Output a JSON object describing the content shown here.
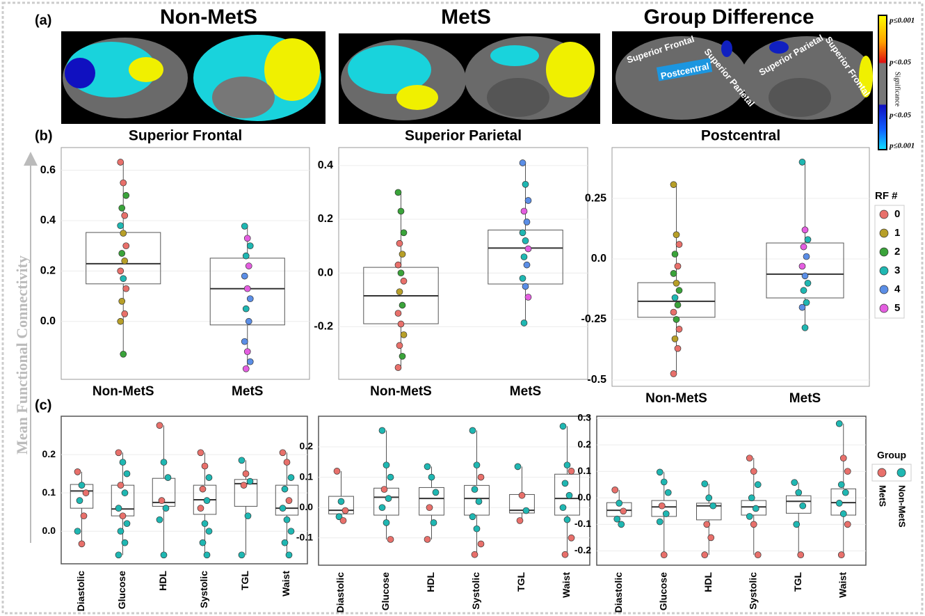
{
  "panel_labels": [
    "(a)",
    "(b)",
    "(c)"
  ],
  "y_axis_label": "Mean Functional Connectivity",
  "brain_panels": [
    {
      "title": "Non-MetS"
    },
    {
      "title": "MetS"
    },
    {
      "title": "Group Difference",
      "labels": [
        "Superior Frontal",
        "Postcentral",
        "Superior Parietal",
        "Superior Parietal",
        "Superior Frontal"
      ]
    }
  ],
  "colorbar": {
    "title": "Significance",
    "labels": [
      "p≤0.001",
      "p<0.05",
      "p<0.05",
      "p≤0.001"
    ]
  },
  "chart_data": [
    {
      "type": "box",
      "title": "Superior Frontal",
      "categories": [
        "Non-MetS",
        "MetS"
      ],
      "ylim": [
        -0.23,
        0.69
      ],
      "yticks": [
        {
          "value": 0,
          "label": "0.0"
        },
        0.2,
        0.4,
        0.6
      ],
      "grid": true,
      "boxes": [
        {
          "whisker_low": -0.13,
          "q1": 0.149,
          "median": 0.229,
          "q3": 0.353,
          "whisker_high": 0.632,
          "points": [
            0.632,
            0.55,
            0.5,
            0.45,
            0.42,
            0.38,
            0.35,
            0.3,
            0.27,
            0.24,
            0.2,
            0.17,
            0.13,
            0.08,
            0.03,
            0.0,
            -0.13
          ],
          "groups": [
            0,
            0,
            2,
            2,
            0,
            3,
            1,
            0,
            2,
            1,
            0,
            3,
            0,
            1,
            0,
            1,
            2
          ]
        },
        {
          "whisker_low": -0.188,
          "q1": -0.014,
          "median": 0.13,
          "q3": 0.251,
          "whisker_high": 0.378,
          "points": [
            0.378,
            0.33,
            0.3,
            0.26,
            0.22,
            0.18,
            0.13,
            0.09,
            0.05,
            0.0,
            -0.08,
            -0.12,
            -0.16,
            -0.188
          ],
          "groups": [
            3,
            5,
            3,
            3,
            5,
            4,
            5,
            4,
            3,
            4,
            4,
            5,
            4,
            5
          ]
        }
      ]
    },
    {
      "type": "box",
      "title": "Superior Parietal",
      "categories": [
        "Non-MetS",
        "MetS"
      ],
      "ylim": [
        -0.396,
        0.467
      ],
      "yticks": [
        -0.2,
        {
          "value": 0,
          "label": "0.0"
        },
        0.2,
        0.4
      ],
      "grid": true,
      "boxes": [
        {
          "whisker_low": -0.352,
          "q1": -0.189,
          "median": -0.085,
          "q3": 0.021,
          "whisker_high": 0.3,
          "points": [
            0.3,
            0.23,
            0.15,
            0.11,
            0.07,
            0.03,
            0.0,
            -0.03,
            -0.07,
            -0.12,
            -0.15,
            -0.19,
            -0.23,
            -0.27,
            -0.31,
            -0.352
          ],
          "groups": [
            2,
            2,
            2,
            0,
            1,
            0,
            2,
            0,
            1,
            2,
            0,
            0,
            1,
            0,
            2,
            0
          ]
        },
        {
          "whisker_low": -0.186,
          "q1": -0.041,
          "median": 0.093,
          "q3": 0.16,
          "whisker_high": 0.41,
          "points": [
            0.41,
            0.33,
            0.27,
            0.23,
            0.19,
            0.15,
            0.12,
            0.09,
            0.06,
            0.03,
            -0.02,
            -0.05,
            -0.09,
            -0.186
          ],
          "groups": [
            4,
            3,
            4,
            5,
            4,
            3,
            3,
            5,
            3,
            4,
            3,
            4,
            5,
            3
          ]
        }
      ]
    },
    {
      "type": "box",
      "title": "Postcentral",
      "categories": [
        "Non-MetS",
        "MetS"
      ],
      "ylim": [
        -0.526,
        0.46
      ],
      "yticks": [
        -0.5,
        -0.25,
        {
          "value": 0,
          "label": "0.0"
        },
        0.25
      ],
      "grid": true,
      "legend": {
        "title": "RF #",
        "names": [
          "0",
          "1",
          "2",
          "3",
          "4",
          "5"
        ],
        "colors": [
          "#e8706b",
          "#b79f28",
          "#3aa33a",
          "#1fb7b2",
          "#5b8ee6",
          "#e45ee0"
        ]
      },
      "boxes": [
        {
          "whisker_low": -0.474,
          "q1": -0.241,
          "median": -0.175,
          "q3": -0.098,
          "whisker_high": 0.307,
          "points": [
            0.307,
            0.1,
            0.06,
            0.02,
            -0.03,
            -0.06,
            -0.1,
            -0.13,
            -0.16,
            -0.19,
            -0.22,
            -0.25,
            -0.29,
            -0.33,
            -0.37,
            -0.474
          ],
          "groups": [
            1,
            1,
            0,
            2,
            0,
            2,
            1,
            2,
            3,
            2,
            0,
            2,
            0,
            1,
            0,
            0
          ]
        },
        {
          "whisker_low": -0.284,
          "q1": -0.161,
          "median": -0.063,
          "q3": 0.066,
          "whisker_high": 0.4,
          "points": [
            0.4,
            0.12,
            0.08,
            0.05,
            0.01,
            -0.03,
            -0.07,
            -0.1,
            -0.13,
            -0.18,
            -0.2,
            -0.284
          ],
          "groups": [
            3,
            5,
            3,
            5,
            4,
            5,
            4,
            3,
            3,
            3,
            4,
            3
          ]
        }
      ]
    },
    {
      "type": "box",
      "categories": [
        "Diastolic",
        "Glucose",
        "HDL",
        "Systolic",
        "TGL",
        "Waist"
      ],
      "ylim": [
        -0.085,
        0.3
      ],
      "yticks": [
        {
          "value": 0,
          "label": "0.0"
        },
        0.1,
        0.2
      ],
      "grid": true,
      "boxes": [
        {
          "whisker_low": -0.033,
          "q1": 0.06,
          "median": 0.105,
          "q3": 0.122,
          "whisker_high": 0.155,
          "points": [
            0.155,
            0.12,
            0.1,
            0.08,
            0.04,
            0.0,
            -0.033
          ],
          "groups": [
            0,
            1,
            0,
            1,
            0,
            1,
            0
          ]
        },
        {
          "whisker_low": -0.062,
          "q1": 0.04,
          "median": 0.058,
          "q3": 0.12,
          "whisker_high": 0.205,
          "points": [
            0.205,
            0.18,
            0.15,
            0.12,
            0.1,
            0.06,
            0.04,
            0.02,
            0.0,
            -0.03,
            -0.062
          ],
          "groups": [
            0,
            1,
            1,
            0,
            1,
            1,
            0,
            1,
            1,
            1,
            1
          ]
        },
        {
          "whisker_low": -0.062,
          "q1": 0.065,
          "median": 0.075,
          "q3": 0.138,
          "whisker_high": 0.276,
          "points": [
            0.276,
            0.18,
            0.14,
            0.08,
            0.06,
            0.03,
            -0.062
          ],
          "groups": [
            0,
            1,
            1,
            0,
            1,
            1,
            1
          ]
        },
        {
          "whisker_low": -0.062,
          "q1": 0.044,
          "median": 0.082,
          "q3": 0.12,
          "whisker_high": 0.205,
          "points": [
            0.205,
            0.17,
            0.14,
            0.11,
            0.08,
            0.06,
            0.02,
            0.0,
            -0.03,
            -0.062
          ],
          "groups": [
            0,
            0,
            1,
            0,
            1,
            0,
            1,
            1,
            1,
            1
          ]
        },
        {
          "whisker_low": -0.062,
          "q1": 0.065,
          "median": 0.124,
          "q3": 0.135,
          "whisker_high": 0.185,
          "points": [
            0.185,
            0.15,
            0.13,
            0.12,
            0.04,
            -0.062
          ],
          "groups": [
            1,
            0,
            1,
            0,
            1,
            1
          ]
        },
        {
          "whisker_low": -0.062,
          "q1": 0.042,
          "median": 0.06,
          "q3": 0.12,
          "whisker_high": 0.205,
          "points": [
            0.205,
            0.18,
            0.14,
            0.11,
            0.08,
            0.06,
            0.03,
            0.0,
            -0.03,
            -0.062
          ],
          "groups": [
            0,
            0,
            1,
            1,
            0,
            1,
            1,
            1,
            1,
            1
          ]
        }
      ]
    },
    {
      "type": "box",
      "categories": [
        "Diastolic",
        "Glucose",
        "HDL",
        "Systolic",
        "TGL",
        "Waist"
      ],
      "ylim": [
        -0.19,
        0.301
      ],
      "yticks": [
        -0.1,
        {
          "value": 0,
          "label": "0.0"
        },
        0.1,
        0.2
      ],
      "grid": true,
      "boxes": [
        {
          "whisker_low": -0.043,
          "q1": -0.021,
          "median": -0.009,
          "q3": 0.037,
          "whisker_high": 0.12,
          "points": [
            0.12,
            0.02,
            -0.01,
            -0.03,
            -0.043
          ],
          "groups": [
            0,
            1,
            0,
            1,
            0
          ]
        },
        {
          "whisker_low": -0.105,
          "q1": -0.025,
          "median": 0.034,
          "q3": 0.064,
          "whisker_high": 0.254,
          "points": [
            0.254,
            0.14,
            0.1,
            0.06,
            0.03,
            0.0,
            -0.05,
            -0.105
          ],
          "groups": [
            1,
            1,
            1,
            0,
            1,
            1,
            1,
            0
          ]
        },
        {
          "whisker_low": -0.105,
          "q1": -0.025,
          "median": 0.03,
          "q3": 0.066,
          "whisker_high": 0.135,
          "points": [
            0.135,
            0.1,
            0.05,
            0.0,
            -0.05,
            -0.105
          ],
          "groups": [
            1,
            1,
            1,
            0,
            1,
            0
          ]
        },
        {
          "whisker_low": -0.155,
          "q1": -0.025,
          "median": 0.03,
          "q3": 0.073,
          "whisker_high": 0.254,
          "points": [
            0.254,
            0.14,
            0.1,
            0.06,
            0.02,
            -0.03,
            -0.07,
            -0.12,
            -0.155
          ],
          "groups": [
            1,
            1,
            0,
            1,
            1,
            1,
            1,
            0,
            0
          ]
        },
        {
          "whisker_low": -0.043,
          "q1": -0.018,
          "median": -0.009,
          "q3": 0.043,
          "whisker_high": 0.135,
          "points": [
            0.135,
            0.04,
            -0.01,
            -0.043
          ],
          "groups": [
            1,
            0,
            1,
            0
          ]
        },
        {
          "whisker_low": -0.155,
          "q1": -0.025,
          "median": 0.03,
          "q3": 0.11,
          "whisker_high": 0.268,
          "points": [
            0.268,
            0.14,
            0.12,
            0.08,
            0.04,
            0.0,
            -0.04,
            -0.1,
            -0.155
          ],
          "groups": [
            1,
            1,
            0,
            1,
            1,
            1,
            1,
            0,
            0
          ]
        }
      ]
    },
    {
      "type": "box",
      "categories": [
        "Diastolic",
        "Glucose",
        "HDL",
        "Systolic",
        "TGL",
        "Waist"
      ],
      "ylim": [
        -0.254,
        0.308
      ],
      "yticks": [
        -0.2,
        -0.1,
        {
          "value": 0,
          "label": "0.0"
        },
        0.1,
        0.2,
        0.3
      ],
      "grid": true,
      "legend": {
        "title": "Group",
        "names": [
          "MetS",
          "Non-MetS"
        ],
        "colors": [
          "#e8706b",
          "#1fb7b2"
        ]
      },
      "boxes": [
        {
          "whisker_low": -0.1,
          "q1": -0.07,
          "median": -0.047,
          "q3": -0.018,
          "whisker_high": 0.03,
          "points": [
            0.03,
            -0.02,
            -0.05,
            -0.08,
            -0.1
          ],
          "groups": [
            0,
            1,
            0,
            1,
            1
          ]
        },
        {
          "whisker_low": -0.215,
          "q1": -0.07,
          "median": -0.034,
          "q3": -0.01,
          "whisker_high": 0.097,
          "points": [
            0.097,
            0.06,
            0.02,
            -0.03,
            -0.06,
            -0.09,
            -0.215
          ],
          "groups": [
            1,
            1,
            1,
            0,
            1,
            1,
            0
          ]
        },
        {
          "whisker_low": -0.215,
          "q1": -0.083,
          "median": -0.03,
          "q3": -0.02,
          "whisker_high": 0.053,
          "points": [
            0.053,
            0.0,
            -0.03,
            -0.1,
            -0.15,
            -0.215
          ],
          "groups": [
            1,
            1,
            1,
            0,
            0,
            0
          ]
        },
        {
          "whisker_low": -0.215,
          "q1": -0.065,
          "median": -0.034,
          "q3": -0.01,
          "whisker_high": 0.15,
          "points": [
            0.15,
            0.1,
            0.05,
            0.0,
            -0.04,
            -0.07,
            -0.1,
            -0.215
          ],
          "groups": [
            0,
            0,
            1,
            1,
            1,
            1,
            0,
            0
          ]
        },
        {
          "whisker_low": -0.215,
          "q1": -0.058,
          "median": -0.013,
          "q3": 0.008,
          "whisker_high": 0.058,
          "points": [
            0.058,
            0.02,
            -0.03,
            -0.1,
            -0.215
          ],
          "groups": [
            1,
            1,
            1,
            1,
            0
          ]
        },
        {
          "whisker_low": -0.215,
          "q1": -0.065,
          "median": -0.018,
          "q3": 0.034,
          "whisker_high": 0.28,
          "points": [
            0.28,
            0.15,
            0.1,
            0.05,
            0.02,
            -0.02,
            -0.06,
            -0.1,
            -0.215
          ],
          "groups": [
            1,
            0,
            0,
            1,
            1,
            1,
            1,
            0,
            0
          ]
        }
      ]
    }
  ]
}
